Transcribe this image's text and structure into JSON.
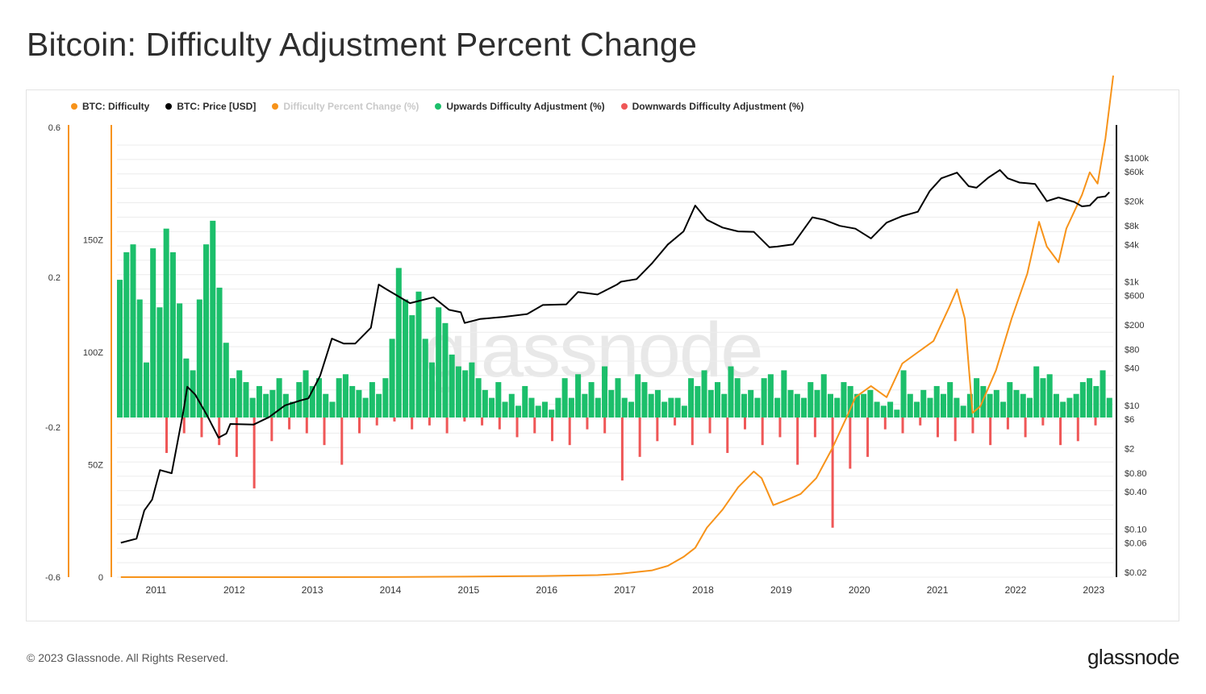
{
  "title": "Bitcoin: Difficulty Adjustment Percent Change",
  "footer": {
    "copyright": "© 2023 Glassnode. All Rights Reserved.",
    "logo": "glassnode"
  },
  "watermark": "glassnode",
  "colors": {
    "difficulty": "#f7931a",
    "price": "#000000",
    "percent_change": "#f7931a",
    "up": "#1cbf6b",
    "down": "#ef5757",
    "grid": "#ececec"
  },
  "legend": [
    {
      "label": "BTC: Difficulty",
      "color": "#f7931a",
      "muted": false
    },
    {
      "label": "BTC: Price [USD]",
      "color": "#000000",
      "muted": false
    },
    {
      "label": "Difficulty Percent Change (%)",
      "color": "#f7931a",
      "muted": true
    },
    {
      "label": "Upwards Difficulty Adjustment (%)",
      "color": "#1cbf6b",
      "muted": false
    },
    {
      "label": "Downwards Difficulty Adjustment (%)",
      "color": "#ef5757",
      "muted": false
    }
  ],
  "chart_data": {
    "type": "line",
    "x_ticks": [
      "2011",
      "2012",
      "2013",
      "2014",
      "2015",
      "2016",
      "2017",
      "2018",
      "2019",
      "2020",
      "2021",
      "2022",
      "2023"
    ],
    "y_left_pct_ticks": [
      "0.6",
      "0.2",
      "-0.2",
      "-0.6"
    ],
    "y_left_pct_range": [
      -0.6,
      0.6
    ],
    "y_left_difficulty_ticks": [
      "150Z",
      "100Z",
      "50Z",
      "0"
    ],
    "y_left_difficulty_range": [
      0,
      150
    ],
    "y_right_price_ticks": [
      "$100k",
      "$60k",
      "$20k",
      "$8k",
      "$4k",
      "$1k",
      "$600",
      "$200",
      "$80",
      "$40",
      "$10",
      "$6",
      "$2",
      "$0.80",
      "$0.40",
      "$0.10",
      "$0.06",
      "$0.02"
    ],
    "y_right_price_scale": "log",
    "y_right_price_range": [
      0.02,
      100000
    ],
    "series": [
      {
        "name": "BTC: Difficulty",
        "unit": "Z",
        "points": [
          [
            2010.6,
            0
          ],
          [
            2013.0,
            0
          ],
          [
            2014.0,
            0.05
          ],
          [
            2015.0,
            0.2
          ],
          [
            2016.0,
            0.5
          ],
          [
            2016.7,
            0.9
          ],
          [
            2017.0,
            1.5
          ],
          [
            2017.4,
            3
          ],
          [
            2017.6,
            5
          ],
          [
            2017.8,
            9
          ],
          [
            2017.95,
            13
          ],
          [
            2018.1,
            22
          ],
          [
            2018.3,
            30
          ],
          [
            2018.5,
            40
          ],
          [
            2018.7,
            47
          ],
          [
            2018.8,
            44
          ],
          [
            2018.95,
            32
          ],
          [
            2019.1,
            34
          ],
          [
            2019.3,
            37
          ],
          [
            2019.5,
            44
          ],
          [
            2019.7,
            57
          ],
          [
            2019.9,
            72
          ],
          [
            2020.0,
            80
          ],
          [
            2020.2,
            85
          ],
          [
            2020.4,
            80
          ],
          [
            2020.6,
            95
          ],
          [
            2020.8,
            100
          ],
          [
            2021.0,
            105
          ],
          [
            2021.2,
            120
          ],
          [
            2021.3,
            128
          ],
          [
            2021.4,
            115
          ],
          [
            2021.5,
            73
          ],
          [
            2021.6,
            76
          ],
          [
            2021.8,
            92
          ],
          [
            2022.0,
            115
          ],
          [
            2022.2,
            135
          ],
          [
            2022.35,
            158
          ],
          [
            2022.45,
            147
          ],
          [
            2022.6,
            140
          ],
          [
            2022.7,
            155
          ],
          [
            2022.9,
            170
          ],
          [
            2023.0,
            180
          ],
          [
            2023.1,
            175
          ],
          [
            2023.2,
            195
          ],
          [
            2023.3,
            223
          ]
        ]
      },
      {
        "name": "BTC: Price [USD]",
        "unit": "USD",
        "points": [
          [
            2010.6,
            0.06
          ],
          [
            2010.8,
            0.07
          ],
          [
            2010.9,
            0.2
          ],
          [
            2011.0,
            0.3
          ],
          [
            2011.1,
            0.9
          ],
          [
            2011.25,
            0.8
          ],
          [
            2011.4,
            8
          ],
          [
            2011.45,
            20
          ],
          [
            2011.55,
            15
          ],
          [
            2011.7,
            7
          ],
          [
            2011.85,
            3
          ],
          [
            2011.95,
            3.5
          ],
          [
            2012.0,
            5
          ],
          [
            2012.3,
            4.9
          ],
          [
            2012.5,
            6.5
          ],
          [
            2012.7,
            10
          ],
          [
            2012.9,
            12
          ],
          [
            2013.0,
            13
          ],
          [
            2013.15,
            30
          ],
          [
            2013.3,
            120
          ],
          [
            2013.45,
            100
          ],
          [
            2013.6,
            100
          ],
          [
            2013.8,
            180
          ],
          [
            2013.9,
            900
          ],
          [
            2014.0,
            750
          ],
          [
            2014.3,
            450
          ],
          [
            2014.6,
            560
          ],
          [
            2014.8,
            350
          ],
          [
            2014.95,
            320
          ],
          [
            2015.0,
            215
          ],
          [
            2015.2,
            250
          ],
          [
            2015.5,
            270
          ],
          [
            2015.8,
            300
          ],
          [
            2016.0,
            420
          ],
          [
            2016.3,
            430
          ],
          [
            2016.45,
            680
          ],
          [
            2016.7,
            620
          ],
          [
            2016.95,
            900
          ],
          [
            2017.0,
            1000
          ],
          [
            2017.2,
            1100
          ],
          [
            2017.4,
            2000
          ],
          [
            2017.6,
            4000
          ],
          [
            2017.8,
            6500
          ],
          [
            2017.95,
            17000
          ],
          [
            2018.1,
            10000
          ],
          [
            2018.3,
            7500
          ],
          [
            2018.5,
            6500
          ],
          [
            2018.7,
            6400
          ],
          [
            2018.9,
            3600
          ],
          [
            2019.0,
            3700
          ],
          [
            2019.2,
            4000
          ],
          [
            2019.45,
            11000
          ],
          [
            2019.6,
            10000
          ],
          [
            2019.8,
            8000
          ],
          [
            2020.0,
            7200
          ],
          [
            2020.2,
            5000
          ],
          [
            2020.4,
            9000
          ],
          [
            2020.6,
            11500
          ],
          [
            2020.8,
            13500
          ],
          [
            2020.95,
            29000
          ],
          [
            2021.1,
            47000
          ],
          [
            2021.3,
            58000
          ],
          [
            2021.45,
            35000
          ],
          [
            2021.55,
            33000
          ],
          [
            2021.7,
            48000
          ],
          [
            2021.85,
            64000
          ],
          [
            2021.95,
            47000
          ],
          [
            2022.1,
            40000
          ],
          [
            2022.3,
            38000
          ],
          [
            2022.45,
            20000
          ],
          [
            2022.6,
            23000
          ],
          [
            2022.8,
            19500
          ],
          [
            2022.9,
            16500
          ],
          [
            2023.0,
            17000
          ],
          [
            2023.1,
            23000
          ],
          [
            2023.2,
            24000
          ],
          [
            2023.25,
            28000
          ]
        ]
      },
      {
        "name": "Upwards Difficulty Adjustment (%)",
        "type": "bar",
        "color": "#1cbf6b",
        "values": [
          0.35,
          0.42,
          0.44,
          0.3,
          0.14,
          0.43,
          0.28,
          0.48,
          0.42,
          0.29,
          0.15,
          0.12,
          0.3,
          0.44,
          0.5,
          0.33,
          0.19,
          0.1,
          0.12,
          0.09,
          0.05,
          0.08,
          0.06,
          0.07,
          0.1,
          0.06,
          0.04,
          0.09,
          0.12,
          0.08,
          0.1,
          0.06,
          0.04,
          0.1,
          0.11,
          0.08,
          0.07,
          0.05,
          0.09,
          0.06,
          0.1,
          0.2,
          0.38,
          0.3,
          0.26,
          0.32,
          0.2,
          0.14,
          0.28,
          0.24,
          0.16,
          0.13,
          0.12,
          0.14,
          0.1,
          0.07,
          0.05,
          0.09,
          0.04,
          0.06,
          0.03,
          0.08,
          0.05,
          0.03,
          0.04,
          0.02,
          0.05,
          0.1,
          0.05,
          0.11,
          0.06,
          0.09,
          0.05,
          0.13,
          0.07,
          0.1,
          0.05,
          0.04,
          0.11,
          0.09,
          0.06,
          0.07,
          0.04,
          0.05,
          0.05,
          0.03,
          0.1,
          0.08,
          0.12,
          0.07,
          0.09,
          0.06,
          0.13,
          0.1,
          0.06,
          0.07,
          0.05,
          0.1,
          0.11,
          0.05,
          0.12,
          0.07,
          0.06,
          0.05,
          0.09,
          0.07,
          0.11,
          0.06,
          0.05,
          0.09,
          0.08,
          0.06,
          0.06,
          0.07,
          0.04,
          0.03,
          0.04,
          0.02,
          0.12,
          0.06,
          0.04,
          0.07,
          0.05,
          0.08,
          0.06,
          0.09,
          0.05,
          0.03,
          0.06,
          0.1,
          0.08,
          0.06,
          0.07,
          0.04,
          0.09,
          0.07,
          0.06,
          0.05,
          0.13,
          0.1,
          0.11,
          0.06,
          0.04,
          0.05,
          0.06,
          0.09,
          0.1,
          0.08,
          0.12,
          0.05
        ]
      },
      {
        "name": "Downwards Difficulty Adjustment (%)",
        "type": "bar",
        "color": "#ef5757",
        "values": [
          -0.09,
          -0.04,
          -0.05,
          -0.07,
          -0.1,
          -0.18,
          -0.06,
          -0.03,
          -0.04,
          -0.07,
          -0.12,
          -0.04,
          -0.02,
          -0.01,
          -0.03,
          -0.02,
          -0.04,
          -0.01,
          -0.02,
          -0.03,
          -0.05,
          -0.04,
          -0.06,
          -0.07,
          -0.03,
          -0.04,
          -0.16,
          -0.1,
          -0.06,
          -0.02,
          -0.07,
          -0.04,
          -0.09,
          -0.03,
          -0.07,
          -0.05,
          -0.12,
          -0.05,
          -0.28,
          -0.13,
          -0.1,
          -0.03,
          -0.04,
          -0.02,
          -0.05,
          -0.06,
          -0.04,
          -0.07,
          -0.03,
          -0.05,
          -0.02,
          -0.07,
          -0.06,
          -0.02
        ]
      }
    ]
  }
}
